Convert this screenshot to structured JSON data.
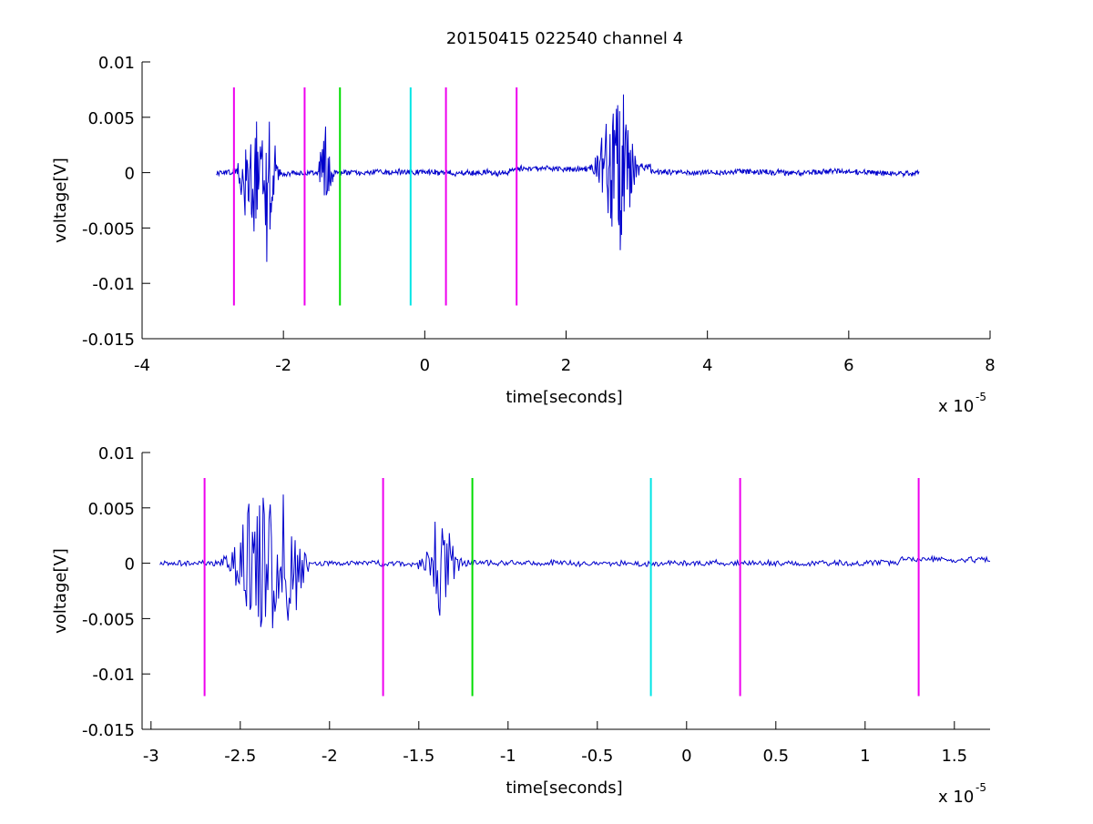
{
  "title": "20150415 022540 channel 4",
  "colors": {
    "signal": "#0000cc",
    "marker_magenta": "#ee00ee",
    "marker_green": "#00dd00",
    "marker_cyan": "#00e5e5",
    "axis": "#000000",
    "background": "#ffffff"
  },
  "chart_data": [
    {
      "type": "line",
      "title": "20150415 022540 channel 4",
      "xlabel": "time[seconds]",
      "ylabel": "voltage[V]",
      "x_exponent_label": "x 10",
      "x_exponent": "-5",
      "xlim": [
        -4,
        8
      ],
      "ylim": [
        -0.015,
        0.01
      ],
      "x_ticks": [
        -4,
        -2,
        0,
        2,
        4,
        6,
        8
      ],
      "x_tick_labels": [
        "-4",
        "-2",
        "0",
        "2",
        "4",
        "6",
        "8"
      ],
      "y_ticks": [
        -0.015,
        -0.01,
        -0.005,
        0,
        0.005,
        0.01
      ],
      "y_tick_labels": [
        "-0.015",
        "-0.01",
        "-0.005",
        "0",
        "0.005",
        "0.01"
      ],
      "grid": false,
      "signal": {
        "x_range": [
          -2.95,
          7.0
        ],
        "baseline": 0,
        "noise": 0.0003,
        "bursts": [
          {
            "t": -2.4,
            "w": 0.28,
            "amp": 0.007
          },
          {
            "t": -2.2,
            "w": 0.12,
            "amp": 0.007
          },
          {
            "t": -1.4,
            "w": 0.12,
            "amp": 0.0045
          },
          {
            "t": 2.72,
            "w": 0.3,
            "amp": 0.0085
          }
        ]
      },
      "markers": [
        {
          "x": -2.7,
          "color": "magenta",
          "y_range": [
            -0.012,
            0.0077
          ]
        },
        {
          "x": -1.7,
          "color": "magenta",
          "y_range": [
            -0.012,
            0.0077
          ]
        },
        {
          "x": -1.2,
          "color": "green",
          "y_range": [
            -0.012,
            0.0077
          ]
        },
        {
          "x": -0.2,
          "color": "cyan",
          "y_range": [
            -0.012,
            0.0077
          ]
        },
        {
          "x": 0.3,
          "color": "magenta",
          "y_range": [
            -0.012,
            0.0077
          ]
        },
        {
          "x": 1.3,
          "color": "magenta",
          "y_range": [
            -0.012,
            0.0077
          ]
        }
      ]
    },
    {
      "type": "line",
      "xlabel": "time[seconds]",
      "ylabel": "voltage[V]",
      "x_exponent_label": "x 10",
      "x_exponent": "-5",
      "xlim": [
        -3.05,
        1.7
      ],
      "ylim": [
        -0.015,
        0.01
      ],
      "x_ticks": [
        -3,
        -2.5,
        -2,
        -1.5,
        -1,
        -0.5,
        0,
        0.5,
        1,
        1.5
      ],
      "x_tick_labels": [
        "-3",
        "-2.5",
        "-2",
        "-1.5",
        "-1",
        "-0.5",
        "0",
        "0.5",
        "1",
        "1.5"
      ],
      "y_ticks": [
        -0.015,
        -0.01,
        -0.005,
        0,
        0.005,
        0.01
      ],
      "y_tick_labels": [
        "-0.015",
        "-0.01",
        "-0.005",
        "0",
        "0.005",
        "0.01"
      ],
      "grid": false,
      "signal": {
        "x_range": [
          -2.95,
          1.7
        ],
        "baseline": 0,
        "noise": 0.0003,
        "bursts": [
          {
            "t": -2.38,
            "w": 0.2,
            "amp": 0.0072
          },
          {
            "t": -2.22,
            "w": 0.1,
            "amp": 0.007
          },
          {
            "t": -1.38,
            "w": 0.12,
            "amp": 0.0048
          }
        ]
      },
      "markers": [
        {
          "x": -2.7,
          "color": "magenta",
          "y_range": [
            -0.012,
            0.0077
          ]
        },
        {
          "x": -1.7,
          "color": "magenta",
          "y_range": [
            -0.012,
            0.0077
          ]
        },
        {
          "x": -1.2,
          "color": "green",
          "y_range": [
            -0.012,
            0.0077
          ]
        },
        {
          "x": -0.2,
          "color": "cyan",
          "y_range": [
            -0.012,
            0.0077
          ]
        },
        {
          "x": 0.3,
          "color": "magenta",
          "y_range": [
            -0.012,
            0.0077
          ]
        },
        {
          "x": 1.3,
          "color": "magenta",
          "y_range": [
            -0.012,
            0.0077
          ]
        }
      ]
    }
  ]
}
